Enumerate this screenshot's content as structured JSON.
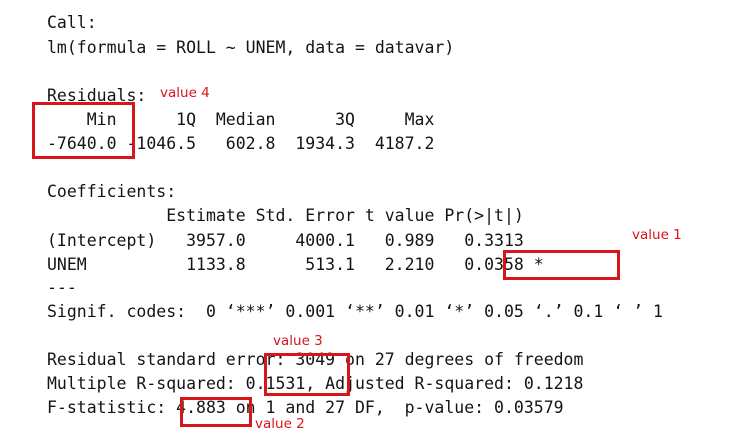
{
  "output": {
    "call_header": "Call:",
    "call_formula": "lm(formula = ROLL ~ UNEM, data = datavar)",
    "residuals_header": "Residuals:",
    "residuals_col_headers": "    Min      1Q  Median      3Q     Max",
    "residuals_values": "-7640.0 -1046.5   602.8  1934.3  4187.2",
    "coefficients_header": "Coefficients:",
    "coef_col_headers": "            Estimate Std. Error t value Pr(>|t|)",
    "coef_row_intercept": "(Intercept)   3957.0     4000.1   0.989   0.3313",
    "coef_row_unem": "UNEM          1133.8      513.1   2.210   0.0358 *",
    "separator": "---",
    "signif_codes": "Signif. codes:  0 ‘***’ 0.001 ‘**’ 0.01 ‘*’ 0.05 ‘.’ 0.1 ‘ ’ 1",
    "residual_se": "Residual standard error: 3049 on 27 degrees of freedom",
    "r_squared": "Multiple R-squared: 0.1531, Adjusted R-squared: 0.1218",
    "f_statistic": "F-statistic: 4.883 on 1 and 27 DF,  p-value: 0.03579"
  },
  "annotations": {
    "value1": "value 1",
    "value2": "value 2",
    "value3": "value 3",
    "value4": "value 4"
  },
  "colors": {
    "text": "#141414",
    "highlight": "#d8141c",
    "background": "#ffffff"
  }
}
